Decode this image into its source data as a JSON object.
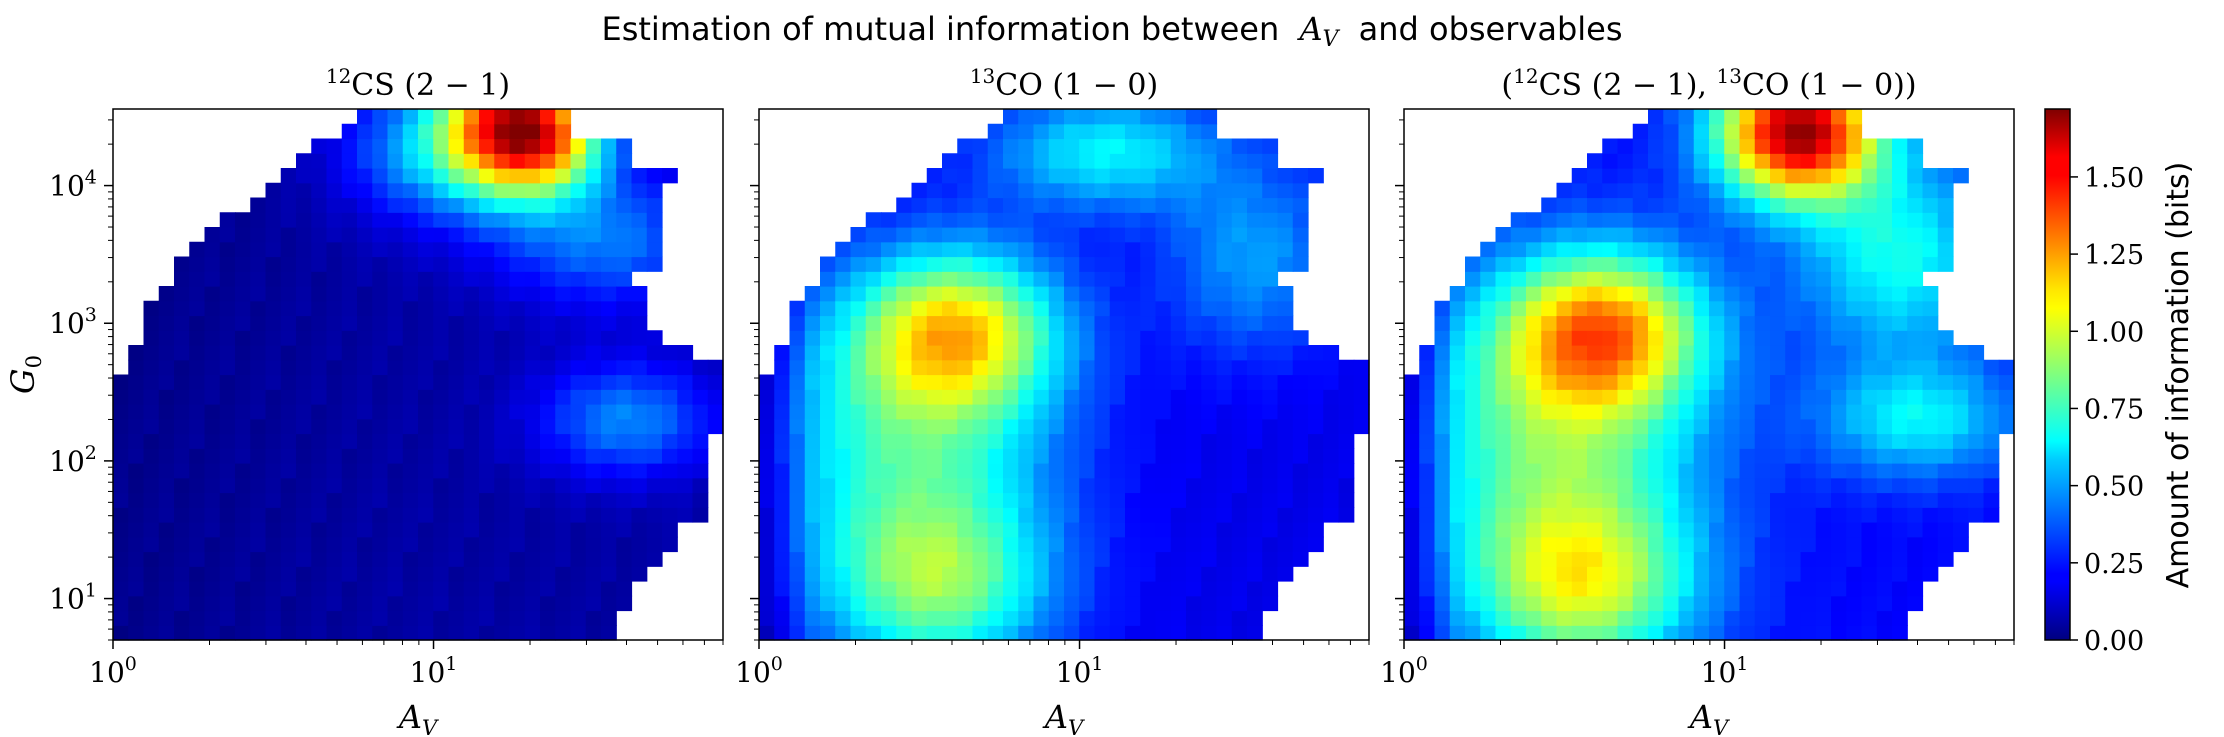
{
  "figure": {
    "title_prefix": "Estimation of mutual information between",
    "title_var": "A",
    "title_var_sub": "V",
    "title_suffix": "and observables"
  },
  "chart_data": [
    {
      "type": "heatmap",
      "title_parts": [
        "12",
        "CS",
        "(2 − 1)"
      ],
      "xlabel_main": "A",
      "xlabel_sub": "V",
      "ylabel_main": "G",
      "ylabel_sub": "0",
      "xlim": [
        1,
        80
      ],
      "ylim": [
        5,
        36000
      ],
      "xscale": "log",
      "yscale": "log",
      "x_ticks": [
        {
          "base": "10",
          "exp": "0",
          "value": 1
        },
        {
          "base": "10",
          "exp": "1",
          "value": 10
        }
      ],
      "y_ticks": [
        {
          "base": "10",
          "exp": "1",
          "value": 10
        },
        {
          "base": "10",
          "exp": "2",
          "value": 100
        },
        {
          "base": "10",
          "exp": "3",
          "value": 1000
        },
        {
          "base": "10",
          "exp": "4",
          "value": 10000
        }
      ],
      "blobs": [
        {
          "ax": 18,
          "gy": 28000,
          "sx": 0.16,
          "sy": 0.35,
          "v": 1.35
        },
        {
          "ax": 25,
          "gy": 20000,
          "sx": 0.12,
          "sy": 0.25,
          "v": 0.35
        },
        {
          "ax": 10,
          "gy": 18000,
          "sx": 0.22,
          "sy": 0.35,
          "v": 0.4
        },
        {
          "ax": 35,
          "gy": 4000,
          "sx": 0.25,
          "sy": 0.35,
          "v": 0.35
        },
        {
          "ax": 40,
          "gy": 200,
          "sx": 0.2,
          "sy": 0.3,
          "v": 0.38
        }
      ],
      "base": 0.06
    },
    {
      "type": "heatmap",
      "title_parts": [
        "13",
        "CO",
        "(1 − 0)"
      ],
      "xlabel_main": "A",
      "xlabel_sub": "V",
      "xlim": [
        1,
        80
      ],
      "ylim": [
        5,
        36000
      ],
      "xscale": "log",
      "yscale": "log",
      "x_ticks": [
        {
          "base": "10",
          "exp": "0",
          "value": 1
        },
        {
          "base": "10",
          "exp": "1",
          "value": 10
        }
      ],
      "blobs": [
        {
          "ax": 4.2,
          "gy": 900,
          "sx": 0.22,
          "sy": 0.4,
          "v": 0.75
        },
        {
          "ax": 3.6,
          "gy": 12,
          "sx": 0.25,
          "sy": 0.45,
          "v": 0.55
        },
        {
          "ax": 12,
          "gy": 18000,
          "sx": 0.25,
          "sy": 0.3,
          "v": 0.45
        },
        {
          "ax": 3,
          "gy": 150,
          "sx": 0.32,
          "sy": 0.8,
          "v": 0.55
        },
        {
          "ax": 35,
          "gy": 3000,
          "sx": 0.2,
          "sy": 0.5,
          "v": 0.3
        }
      ],
      "base": 0.18
    },
    {
      "type": "heatmap",
      "title_parts": [
        "12",
        "CS",
        "(2 − 1), ",
        "13",
        "CO",
        "(1 − 0)"
      ],
      "xlabel_main": "A",
      "xlabel_sub": "V",
      "xlim": [
        1,
        80
      ],
      "ylim": [
        5,
        36000
      ],
      "xscale": "log",
      "yscale": "log",
      "x_ticks": [
        {
          "base": "10",
          "exp": "0",
          "value": 1
        },
        {
          "base": "10",
          "exp": "1",
          "value": 10
        }
      ],
      "blobs": [
        {
          "ax": 17,
          "gy": 25000,
          "sx": 0.18,
          "sy": 0.35,
          "v": 1.45
        },
        {
          "ax": 4.2,
          "gy": 900,
          "sx": 0.22,
          "sy": 0.4,
          "v": 0.85
        },
        {
          "ax": 3.6,
          "gy": 12,
          "sx": 0.25,
          "sy": 0.45,
          "v": 0.65
        },
        {
          "ax": 3,
          "gy": 150,
          "sx": 0.32,
          "sy": 0.8,
          "v": 0.6
        },
        {
          "ax": 35,
          "gy": 3000,
          "sx": 0.22,
          "sy": 0.5,
          "v": 0.45
        },
        {
          "ax": 40,
          "gy": 200,
          "sx": 0.22,
          "sy": 0.3,
          "v": 0.4
        }
      ],
      "base": 0.22
    }
  ],
  "colorbar": {
    "label": "Amount of information (bits)",
    "range": [
      0,
      1.72
    ],
    "ticks": [
      {
        "value": 0.0,
        "label": "0.00"
      },
      {
        "value": 0.25,
        "label": "0.25"
      },
      {
        "value": 0.5,
        "label": "0.50"
      },
      {
        "value": 0.75,
        "label": "0.75"
      },
      {
        "value": 1.0,
        "label": "1.00"
      },
      {
        "value": 1.25,
        "label": "1.25"
      },
      {
        "value": 1.5,
        "label": "1.50"
      }
    ],
    "colormap": "jet"
  }
}
